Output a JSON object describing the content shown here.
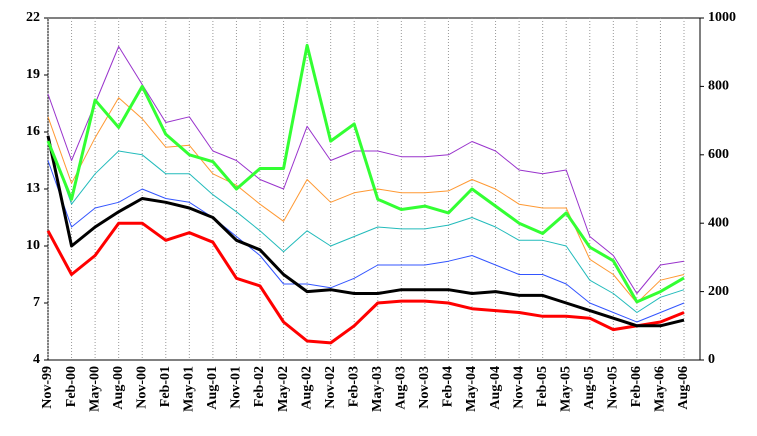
{
  "chart_data": {
    "type": "line",
    "categories": [
      "Nov-99",
      "Feb-00",
      "May-00",
      "Aug-00",
      "Nov-00",
      "Feb-01",
      "May-01",
      "Aug-01",
      "Nov-01",
      "Feb-02",
      "May-02",
      "Aug-02",
      "Nov-02",
      "Feb-03",
      "May-03",
      "Aug-03",
      "Nov-03",
      "Feb-04",
      "May-04",
      "Aug-04",
      "Nov-04",
      "Feb-05",
      "May-05",
      "Aug-05",
      "Nov-05",
      "Feb-06",
      "May-06",
      "Aug-06"
    ],
    "ylim": [
      4,
      22
    ],
    "yticks": [
      4,
      7,
      10,
      13,
      16,
      19,
      22
    ],
    "y2lim": [
      0,
      1000
    ],
    "y2ticks": [
      0,
      200,
      400,
      600,
      800,
      1000
    ],
    "grid": true,
    "series": [
      {
        "color": "#3355ff",
        "width": 1,
        "values": [
          14.5,
          11,
          12,
          12.3,
          13,
          12.5,
          12.3,
          11.5,
          10.5,
          9.5,
          8,
          8,
          7.8,
          8.3,
          9,
          9,
          9,
          9.2,
          9.5,
          9,
          8.5,
          8.5,
          8,
          7,
          6.5,
          6,
          6.5,
          7
        ]
      },
      {
        "color": "#22bbbb",
        "width": 1,
        "values": [
          15.7,
          12.2,
          13.8,
          15.0,
          14.8,
          13.8,
          13.8,
          12.7,
          11.8,
          10.8,
          9.7,
          10.8,
          10.0,
          10.5,
          11,
          10.9,
          10.9,
          11.1,
          11.5,
          11,
          10.3,
          10.3,
          10,
          8.2,
          7.5,
          6.5,
          7.3,
          7.7
        ]
      },
      {
        "color": "#ff9933",
        "width": 1,
        "values": [
          16.8,
          13.3,
          15.7,
          17.8,
          16.7,
          15.2,
          15.3,
          13.8,
          13.2,
          12.2,
          11.3,
          13.5,
          12.3,
          12.8,
          13,
          12.8,
          12.8,
          12.9,
          13.5,
          13,
          12.2,
          12,
          12,
          9.3,
          8.5,
          7,
          8.2,
          8.5
        ]
      },
      {
        "color": "#9933cc",
        "width": 1,
        "values": [
          18,
          14.5,
          17.5,
          20.5,
          18.5,
          16.5,
          16.8,
          15,
          14.5,
          13.5,
          13,
          16.3,
          14.5,
          15,
          15,
          14.7,
          14.7,
          14.8,
          15.5,
          15,
          14,
          13.8,
          14,
          10.5,
          9.5,
          7.5,
          9,
          9.2
        ]
      },
      {
        "color": "#ff0000",
        "width": 3,
        "values": [
          10.8,
          8.5,
          9.5,
          11.2,
          11.2,
          10.3,
          10.7,
          10.2,
          8.3,
          7.9,
          6.0,
          5.0,
          4.9,
          5.8,
          7.0,
          7.1,
          7.1,
          7.0,
          6.7,
          6.6,
          6.5,
          6.3,
          6.3,
          6.2,
          5.6,
          5.8,
          6.0,
          6.5
        ]
      },
      {
        "color": "#000000",
        "width": 3,
        "values": [
          15.8,
          10.0,
          11.0,
          11.8,
          12.5,
          12.3,
          12.0,
          11.5,
          10.3,
          9.8,
          8.5,
          7.6,
          7.7,
          7.5,
          7.5,
          7.7,
          7.7,
          7.7,
          7.5,
          7.6,
          7.4,
          7.4,
          7.0,
          6.6,
          6.2,
          5.8,
          5.8,
          6.1
        ]
      },
      {
        "color": "#33ff33",
        "width": 3,
        "axis": "y2",
        "values": [
          640,
          470,
          760,
          680,
          800,
          660,
          600,
          580,
          500,
          560,
          560,
          920,
          640,
          690,
          470,
          440,
          450,
          430,
          500,
          450,
          400,
          370,
          430,
          330,
          290,
          170,
          200,
          240
        ]
      }
    ]
  }
}
